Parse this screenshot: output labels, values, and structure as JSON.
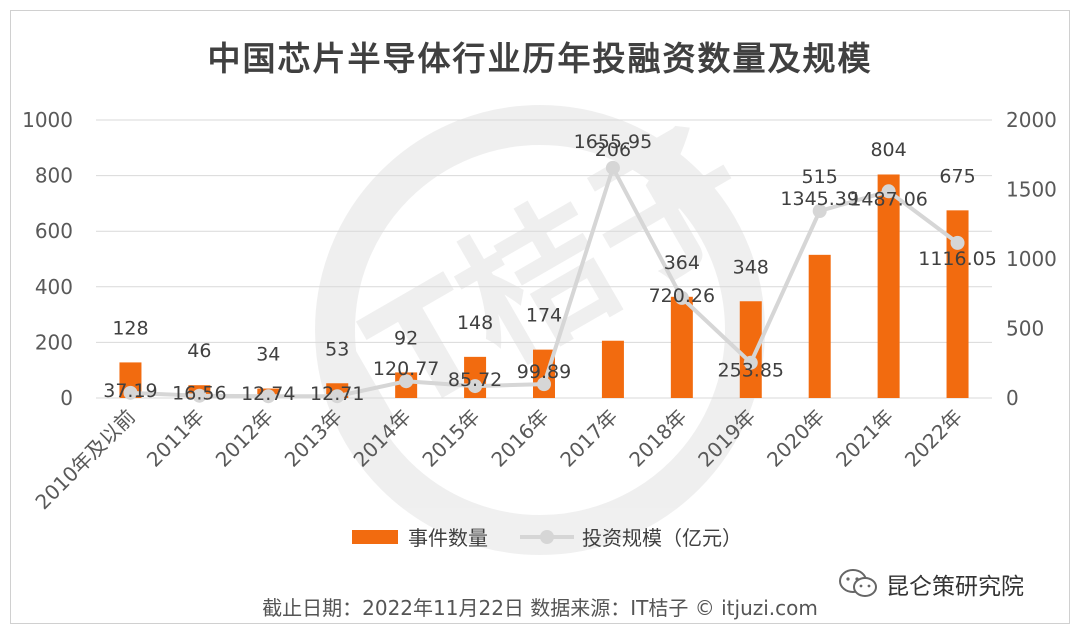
{
  "header": {
    "title": "中国芯片半导体行业历年投融资数量及规模"
  },
  "chart_data": {
    "type": "bar",
    "title": "中国芯片半导体行业历年投融资数量及规模",
    "categories": [
      "2010年及以前",
      "2011年",
      "2012年",
      "2013年",
      "2014年",
      "2015年",
      "2016年",
      "2017年",
      "2018年",
      "2019年",
      "2020年",
      "2021年",
      "2022年"
    ],
    "series": [
      {
        "name": "事件数量",
        "type": "bar",
        "axis": "left",
        "color": "#f26b0f",
        "values": [
          128,
          46,
          34,
          53,
          92,
          148,
          174,
          206,
          364,
          348,
          515,
          804,
          675
        ],
        "labels": [
          "128",
          "46",
          "34",
          "53",
          "92",
          "148",
          "174",
          "206",
          "364",
          "348",
          "515",
          "804",
          "675"
        ]
      },
      {
        "name": "投资规模（亿元）",
        "type": "line",
        "axis": "right",
        "color": "#d6d6d6",
        "values": [
          37.19,
          16.56,
          12.74,
          12.71,
          120.77,
          85.72,
          99.89,
          1655.95,
          720.26,
          253.85,
          1345.39,
          1487.06,
          1116.05
        ],
        "labels": [
          "37.19",
          "16.56",
          "12.74",
          "12.71",
          "120.77",
          "85.72",
          "99.89",
          "1655.95",
          "720.26",
          "253.85",
          "1345.39",
          "1487.06",
          "1116.05"
        ]
      }
    ],
    "y_left": {
      "min": 0,
      "max": 1000,
      "ticks": [
        "0",
        "200",
        "400",
        "600",
        "800",
        "1000"
      ]
    },
    "y_right": {
      "min": 0,
      "max": 2000,
      "ticks": [
        "0",
        "500",
        "1000",
        "1500",
        "2000"
      ]
    },
    "grid": true,
    "legend": "bottom",
    "watermark": "IT桔子 ITJUZI.COM"
  },
  "footer": {
    "note": "截止日期：2022年11月22日   数据来源：IT桔子 © itjuzi.com",
    "brand": "昆仑策研究院"
  }
}
